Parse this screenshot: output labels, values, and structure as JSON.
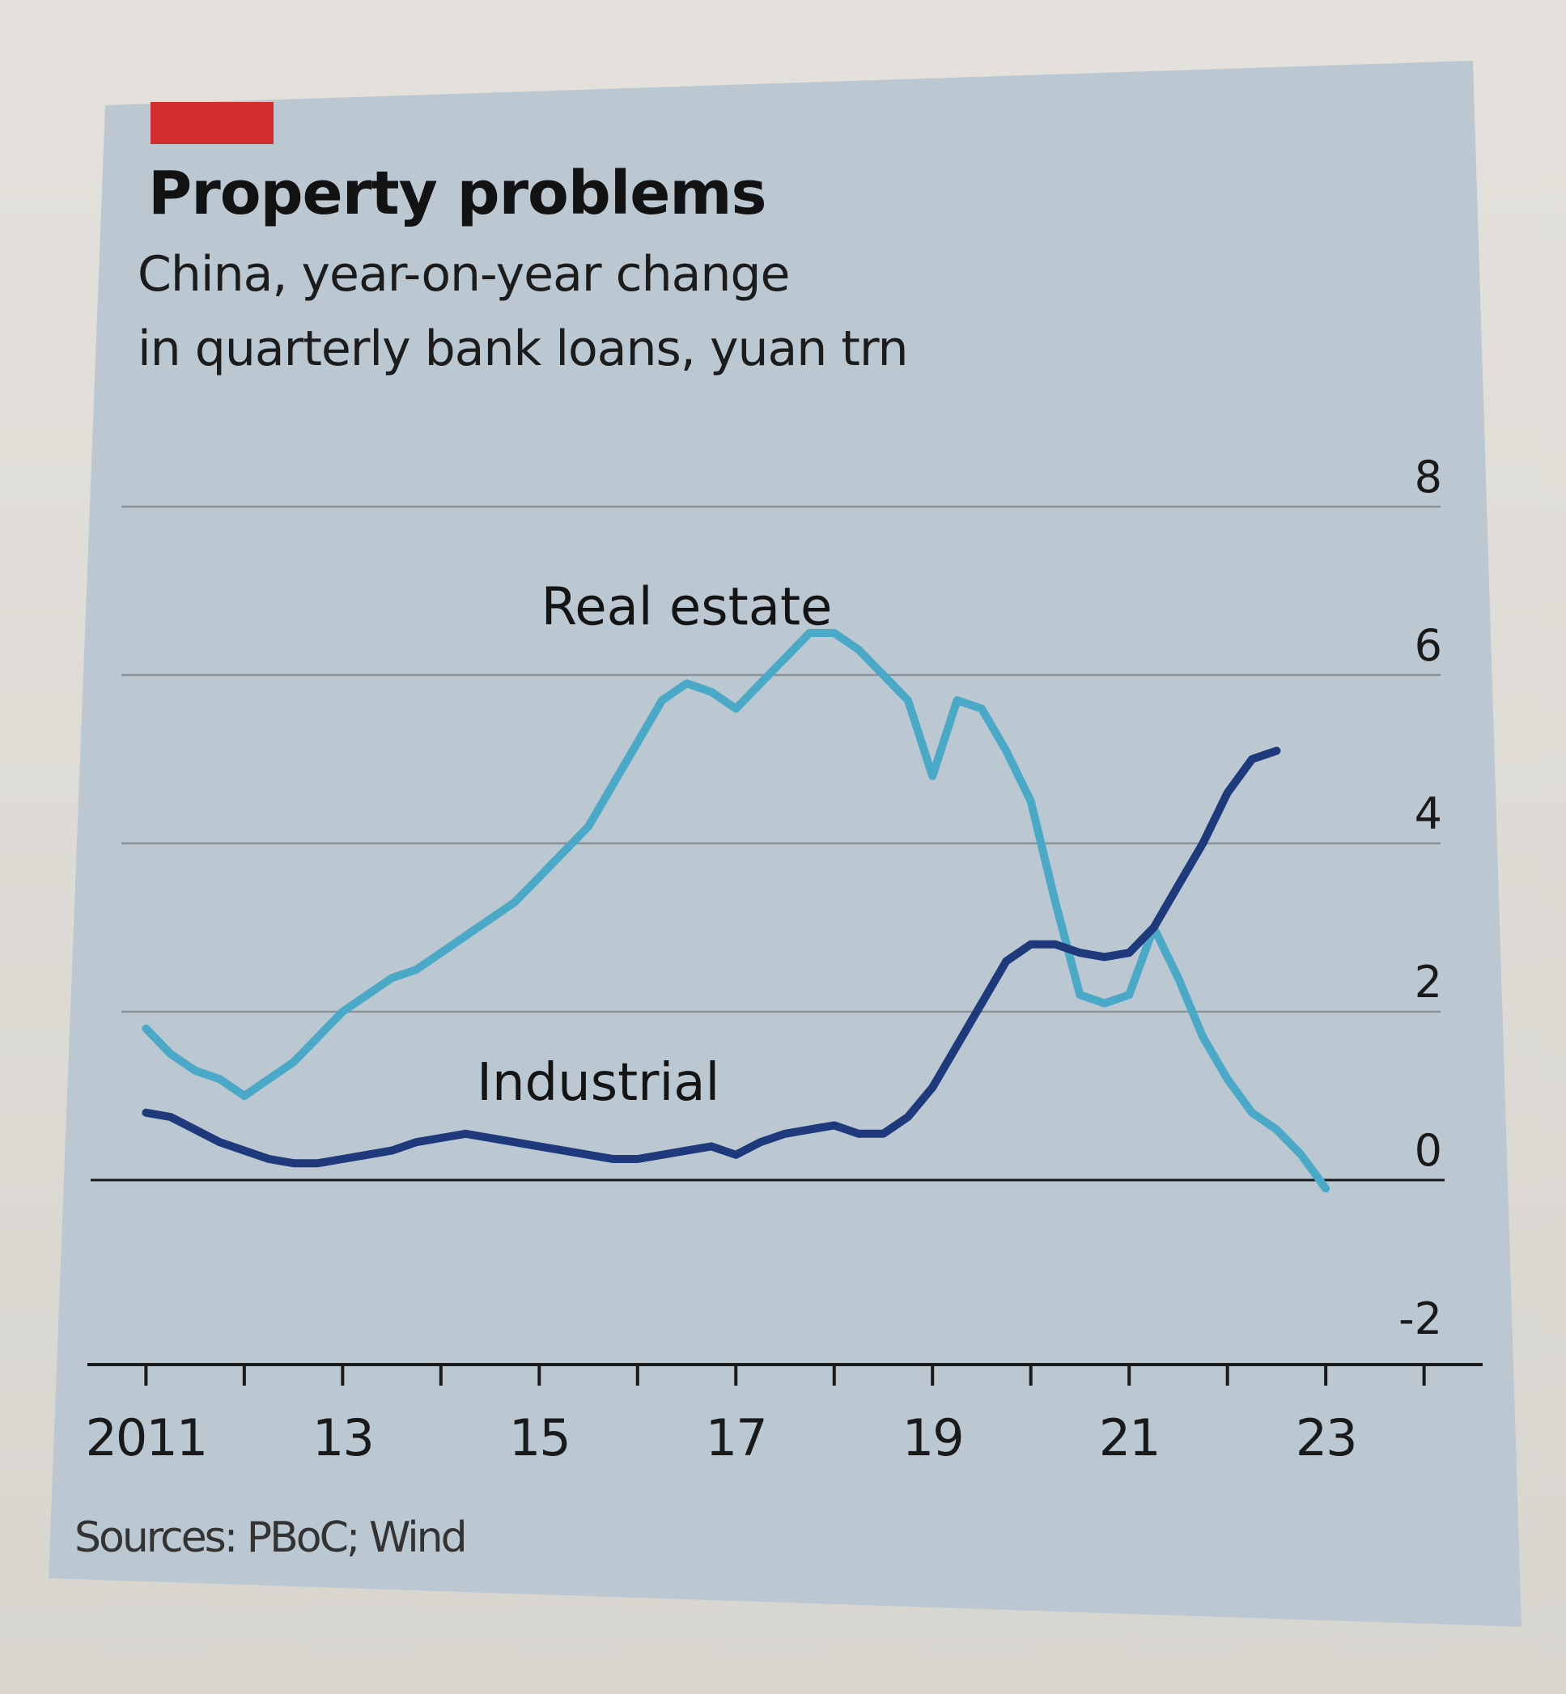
{
  "colors": {
    "panel": "#bcc8d1",
    "accent": "#d42f2f",
    "real_estate": "#4ba9c8",
    "industrial": "#1e3a7c",
    "grid": "#8a9197",
    "axis": "#1a1a1a"
  },
  "chart_data": {
    "type": "line",
    "title": "Property problems",
    "subtitle": [
      "China, year-on-year change",
      "in quarterly bank loans, yuan trn"
    ],
    "source": "Sources: PBoC; Wind",
    "ylim": [
      -2,
      8
    ],
    "yticks": [
      {
        "value": 8,
        "label": "8"
      },
      {
        "value": 6,
        "label": "6"
      },
      {
        "value": 4,
        "label": "4"
      },
      {
        "value": 2,
        "label": "2"
      },
      {
        "value": 0,
        "label": "0"
      },
      {
        "value": -2,
        "label": "-2"
      }
    ],
    "xlim": [
      2010.75,
      2024.25
    ],
    "xtick_positions": [
      2011,
      2012,
      2013,
      2014,
      2015,
      2016,
      2017,
      2018,
      2019,
      2020,
      2021,
      2022,
      2023,
      2024
    ],
    "xtick_labels": [
      {
        "value": 2011,
        "label": "2011"
      },
      {
        "value": 2013,
        "label": "13"
      },
      {
        "value": 2015,
        "label": "15"
      },
      {
        "value": 2017,
        "label": "17"
      },
      {
        "value": 2019,
        "label": "19"
      },
      {
        "value": 2021,
        "label": "21"
      },
      {
        "value": 2023,
        "label": "23"
      }
    ],
    "series": [
      {
        "name": "Real estate",
        "label_at": [
          2016.5,
          6.6
        ],
        "points": [
          [
            2011.0,
            1.8
          ],
          [
            2011.25,
            1.5
          ],
          [
            2011.5,
            1.3
          ],
          [
            2011.75,
            1.2
          ],
          [
            2012.0,
            1.0
          ],
          [
            2012.25,
            1.2
          ],
          [
            2012.5,
            1.4
          ],
          [
            2012.75,
            1.7
          ],
          [
            2013.0,
            2.0
          ],
          [
            2013.25,
            2.2
          ],
          [
            2013.5,
            2.4
          ],
          [
            2013.75,
            2.5
          ],
          [
            2014.0,
            2.7
          ],
          [
            2014.25,
            2.9
          ],
          [
            2014.5,
            3.1
          ],
          [
            2014.75,
            3.3
          ],
          [
            2015.0,
            3.6
          ],
          [
            2015.25,
            3.9
          ],
          [
            2015.5,
            4.2
          ],
          [
            2015.75,
            4.7
          ],
          [
            2016.0,
            5.2
          ],
          [
            2016.25,
            5.7
          ],
          [
            2016.5,
            5.9
          ],
          [
            2016.75,
            5.8
          ],
          [
            2017.0,
            5.6
          ],
          [
            2017.25,
            5.9
          ],
          [
            2017.5,
            6.2
          ],
          [
            2017.75,
            6.5
          ],
          [
            2018.0,
            6.5
          ],
          [
            2018.25,
            6.3
          ],
          [
            2018.5,
            6.0
          ],
          [
            2018.75,
            5.7
          ],
          [
            2019.0,
            4.8
          ],
          [
            2019.25,
            5.7
          ],
          [
            2019.5,
            5.6
          ],
          [
            2019.75,
            5.1
          ],
          [
            2020.0,
            4.5
          ],
          [
            2020.25,
            3.3
          ],
          [
            2020.5,
            2.2
          ],
          [
            2020.75,
            2.1
          ],
          [
            2021.0,
            2.2
          ],
          [
            2021.25,
            3.0
          ],
          [
            2021.5,
            2.4
          ],
          [
            2021.75,
            1.7
          ],
          [
            2022.0,
            1.2
          ],
          [
            2022.25,
            0.8
          ],
          [
            2022.5,
            0.6
          ],
          [
            2022.75,
            0.3
          ],
          [
            2023.0,
            -0.1
          ]
        ]
      },
      {
        "name": "Industrial",
        "label_at": [
          2015.6,
          0.95
        ],
        "points": [
          [
            2011.0,
            0.8
          ],
          [
            2011.25,
            0.75
          ],
          [
            2011.5,
            0.6
          ],
          [
            2011.75,
            0.45
          ],
          [
            2012.0,
            0.35
          ],
          [
            2012.25,
            0.25
          ],
          [
            2012.5,
            0.2
          ],
          [
            2012.75,
            0.2
          ],
          [
            2013.0,
            0.25
          ],
          [
            2013.25,
            0.3
          ],
          [
            2013.5,
            0.35
          ],
          [
            2013.75,
            0.45
          ],
          [
            2014.0,
            0.5
          ],
          [
            2014.25,
            0.55
          ],
          [
            2014.5,
            0.5
          ],
          [
            2014.75,
            0.45
          ],
          [
            2015.0,
            0.4
          ],
          [
            2015.25,
            0.35
          ],
          [
            2015.5,
            0.3
          ],
          [
            2015.75,
            0.25
          ],
          [
            2016.0,
            0.25
          ],
          [
            2016.25,
            0.3
          ],
          [
            2016.5,
            0.35
          ],
          [
            2016.75,
            0.4
          ],
          [
            2017.0,
            0.3
          ],
          [
            2017.25,
            0.45
          ],
          [
            2017.5,
            0.55
          ],
          [
            2017.75,
            0.6
          ],
          [
            2018.0,
            0.65
          ],
          [
            2018.25,
            0.55
          ],
          [
            2018.5,
            0.55
          ],
          [
            2018.75,
            0.75
          ],
          [
            2019.0,
            1.1
          ],
          [
            2019.25,
            1.6
          ],
          [
            2019.5,
            2.1
          ],
          [
            2019.75,
            2.6
          ],
          [
            2020.0,
            2.8
          ],
          [
            2020.25,
            2.8
          ],
          [
            2020.5,
            2.7
          ],
          [
            2020.75,
            2.65
          ],
          [
            2021.0,
            2.7
          ],
          [
            2021.25,
            3.0
          ],
          [
            2021.5,
            3.5
          ],
          [
            2021.75,
            4.0
          ],
          [
            2022.0,
            4.6
          ],
          [
            2022.25,
            5.0
          ],
          [
            2022.5,
            5.1
          ]
        ]
      }
    ]
  }
}
